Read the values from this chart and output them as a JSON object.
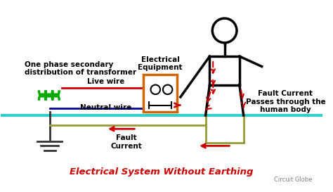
{
  "title": "Electrical System Without Earthing",
  "subtitle": "Circuit Globe",
  "bg_color": "#ffffff",
  "title_color": "#cc0000",
  "text_color": "#000000",
  "live_wire_color": "#cc0000",
  "neutral_wire_color": "#000099",
  "transformer_color": "#00aa00",
  "equipment_box_color": "#cc6600",
  "ground_wire_color": "#999933",
  "ground_line_color": "#33cccc",
  "person_color": "#000000",
  "fault_arrow_color": "#cc0000",
  "labels": {
    "transformer": "One phase secondary\ndistribution of transformer",
    "live_wire": "Live wire",
    "neutral_wire": "Neutral wire",
    "equipment": "Electrical\nEquipment",
    "fault_current1": "Fault\nCurrent",
    "fault_current2": "Fault Current\nPasses through the\nhuman body"
  }
}
